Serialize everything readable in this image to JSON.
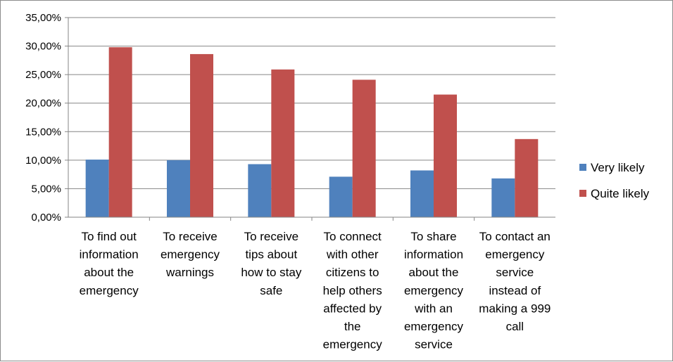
{
  "chart_data": {
    "type": "bar",
    "categories": [
      "To find out information about the emergency",
      "To receive emergency warnings",
      "To receive tips about how to stay safe",
      "To connect with other citizens to help others affected by the emergency",
      "To share information about the emergency with an emergency service",
      "To contact an emergency service instead of making a 999 call"
    ],
    "category_lines": [
      [
        "To find out",
        "information",
        "about the",
        "emergency"
      ],
      [
        "To receive",
        "emergency",
        "warnings"
      ],
      [
        "To receive",
        "tips about",
        "how to stay",
        "safe"
      ],
      [
        "To connect",
        "with other",
        "citizens to",
        "help others",
        "affected by",
        "the",
        "emergency"
      ],
      [
        "To share",
        "information",
        "about the",
        "emergency",
        "with an",
        "emergency",
        "service"
      ],
      [
        "To contact an",
        "emergency",
        "service",
        "instead of",
        "making a 999",
        "call"
      ]
    ],
    "series": [
      {
        "name": "Very likely",
        "color": "#4f81bd",
        "values": [
          10.1,
          10.0,
          9.3,
          7.1,
          8.2,
          6.8
        ]
      },
      {
        "name": "Quite likely",
        "color": "#c0504d",
        "values": [
          29.8,
          28.6,
          25.9,
          24.1,
          21.5,
          13.7
        ]
      }
    ],
    "y_ticks": [
      "0,00%",
      "5,00%",
      "10,00%",
      "15,00%",
      "20,00%",
      "25,00%",
      "30,00%",
      "35,00%"
    ],
    "ylim": [
      0,
      35
    ],
    "grid": true,
    "legend_position": "right",
    "title": "",
    "xlabel": "",
    "ylabel": ""
  }
}
